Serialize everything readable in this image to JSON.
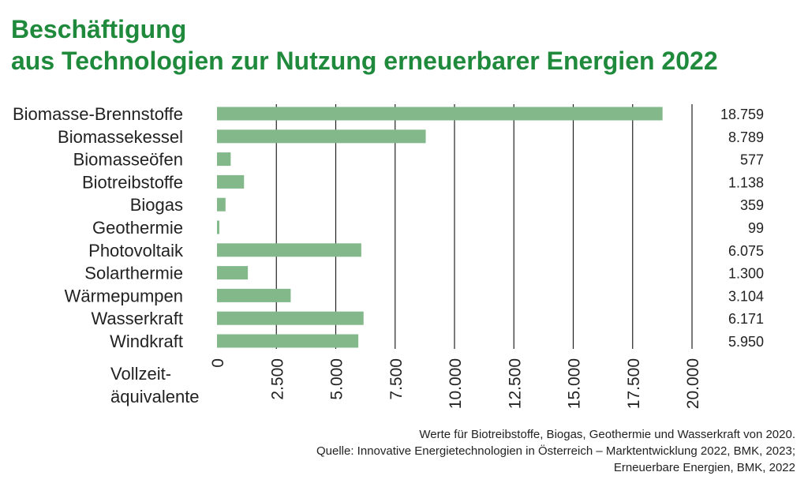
{
  "title_line1": "Beschäftigung",
  "title_line2": "aus Technologien zur Nutzung erneuerbarer Energien 2022",
  "notes": [
    "Werte für Biotreibstoffe, Biogas, Geothermie und Wasserkraft von 2020.",
    "Quelle: Innovative Energietechnologien in Österreich – Marktentwicklung 2022, BMK, 2023;",
    "Erneuerbare Energien, BMK, 2022"
  ],
  "colors": {
    "title": "#1f8a3c",
    "bar": "#82b88a",
    "grid": "#222222",
    "text": "#222222"
  },
  "chart_data": {
    "type": "bar",
    "orientation": "horizontal",
    "categories": [
      "Biomasse-Brennstoffe",
      "Biomassekessel",
      "Biomasseöfen",
      "Biotreibstoffe",
      "Biogas",
      "Geothermie",
      "Photovoltaik",
      "Solarthermie",
      "Wärmepumpen",
      "Wasserkraft",
      "Windkraft"
    ],
    "values": [
      18759,
      8789,
      577,
      1138,
      359,
      99,
      6075,
      1300,
      3104,
      6171,
      5950
    ],
    "value_labels": [
      "18.759",
      "8.789",
      "577",
      "1.138",
      "359",
      "99",
      "6.075",
      "1.300",
      "3.104",
      "6.171",
      "5.950"
    ],
    "xlim": [
      0,
      20000
    ],
    "xticks": [
      0,
      2500,
      5000,
      7500,
      10000,
      12500,
      15000,
      17500,
      20000
    ],
    "xtick_labels": [
      "0",
      "2.500",
      "5.000",
      "7.500",
      "10.000",
      "12.500",
      "15.000",
      "17.500",
      "20.000"
    ],
    "xlabel_line1": "Vollzeit-",
    "xlabel_line2": "äquivalente",
    "grid": "vertical"
  }
}
